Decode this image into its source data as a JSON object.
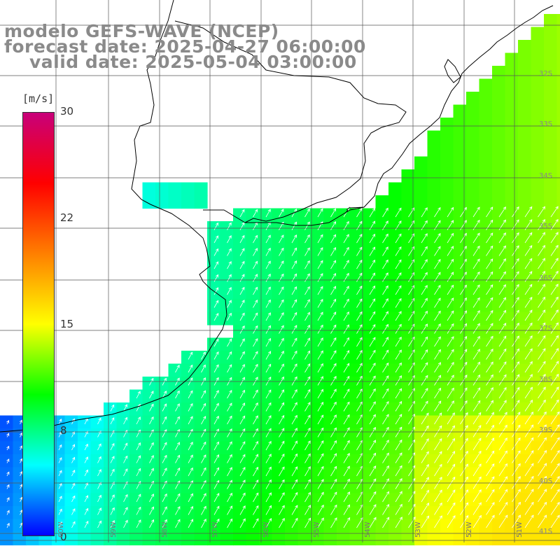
{
  "title": {
    "line1": "modelo GEFS-WAVE (NCEP)",
    "line2": "forecast date: 2025-04-27 06:00:00",
    "line3": "valid date: 2025-05-04 03:00:00"
  },
  "colorbar": {
    "unit": "[m/s]",
    "min": 0,
    "max": 30,
    "ticks": [
      "30",
      "22",
      "15",
      "8",
      "0"
    ],
    "stops": [
      "#0000ff",
      "#00ffff",
      "#00ff00",
      "#ffff00",
      "#ff7f00",
      "#ff0000",
      "#c8007a"
    ]
  },
  "map": {
    "land_color": "#ffffff",
    "grid_color": "#555555",
    "coast_color": "#000000",
    "arrow_color": "#ffffff",
    "lon_labels": [
      "60W",
      "59W",
      "58W",
      "57W",
      "56W",
      "55W",
      "54W",
      "53W",
      "52W",
      "51W"
    ],
    "lat_labels": [
      "32S",
      "33S",
      "34S",
      "35S",
      "36S",
      "37S",
      "38S",
      "39S",
      "40S",
      "41S"
    ]
  }
}
